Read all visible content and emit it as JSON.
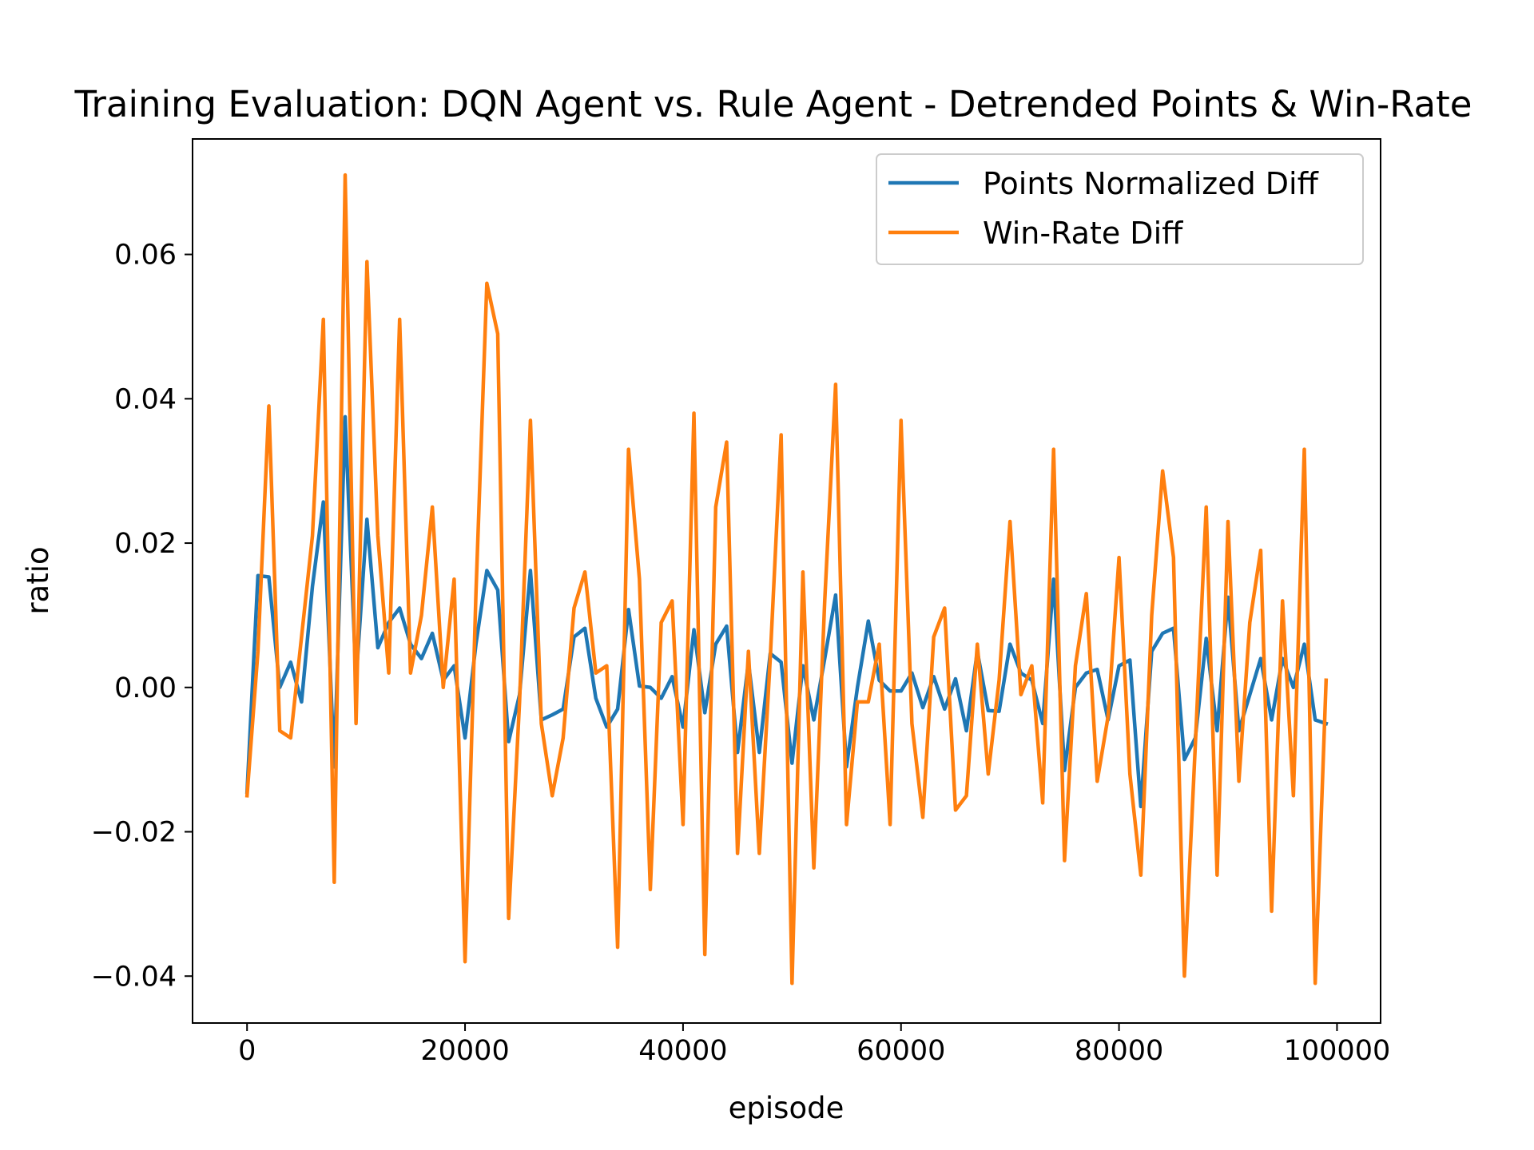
{
  "chart_data": {
    "type": "line",
    "title": "Training Evaluation: DQN Agent vs. Rule Agent - Detrended Points & Win-Rate",
    "xlabel": "episode",
    "ylabel": "ratio",
    "xlim": [
      -5000,
      104000
    ],
    "ylim": [
      -0.0465,
      0.076
    ],
    "x_ticks": [
      0,
      20000,
      40000,
      60000,
      80000,
      100000
    ],
    "x_tick_labels": [
      "0",
      "20000",
      "40000",
      "60000",
      "80000",
      "100000"
    ],
    "y_ticks": [
      -0.04,
      -0.02,
      0.0,
      0.02,
      0.04,
      0.06
    ],
    "y_tick_labels": [
      "−0.04",
      "−0.02",
      "0.00",
      "0.02",
      "0.04",
      "0.06"
    ],
    "grid": false,
    "legend": "top-right",
    "x": [
      0,
      1000,
      2000,
      3000,
      4000,
      5000,
      6000,
      7000,
      8000,
      9000,
      10000,
      11000,
      12000,
      13000,
      14000,
      15000,
      16000,
      17000,
      18000,
      19000,
      20000,
      21000,
      22000,
      23000,
      24000,
      25000,
      26000,
      27000,
      28000,
      29000,
      30000,
      31000,
      32000,
      33000,
      34000,
      35000,
      36000,
      37000,
      38000,
      39000,
      40000,
      41000,
      42000,
      43000,
      44000,
      45000,
      46000,
      47000,
      48000,
      49000,
      50000,
      51000,
      52000,
      53000,
      54000,
      55000,
      56000,
      57000,
      58000,
      59000,
      60000,
      61000,
      62000,
      63000,
      64000,
      65000,
      66000,
      67000,
      68000,
      69000,
      70000,
      71000,
      72000,
      73000,
      74000,
      75000,
      76000,
      77000,
      78000,
      79000,
      80000,
      81000,
      82000,
      83000,
      84000,
      85000,
      86000,
      87000,
      88000,
      89000,
      90000,
      91000,
      92000,
      93000,
      94000,
      95000,
      96000,
      97000,
      98000,
      99000
    ],
    "series": [
      {
        "name": "Points Normalized Diff",
        "color": "#1f77b4",
        "values": [
          -0.0145,
          0.0155,
          0.0153,
          0.0,
          0.0035,
          -0.002,
          0.014,
          0.0257,
          -0.011,
          0.0375,
          0.001,
          0.0233,
          0.0055,
          0.009,
          0.011,
          0.006,
          0.004,
          0.0075,
          0.001,
          0.003,
          -0.007,
          0.006,
          0.0162,
          0.0135,
          -0.0075,
          -0.001,
          0.0162,
          -0.0045,
          -0.0038,
          -0.003,
          0.007,
          0.0082,
          -0.0015,
          -0.0055,
          -0.003,
          0.0108,
          0.0002,
          0.0,
          -0.0015,
          0.0015,
          -0.0055,
          0.008,
          -0.0035,
          0.006,
          0.0085,
          -0.009,
          0.0035,
          -0.009,
          0.0047,
          0.0035,
          -0.0105,
          0.003,
          -0.0045,
          0.004,
          0.0128,
          -0.011,
          0.0,
          0.0092,
          0.001,
          -0.0005,
          -0.0005,
          0.002,
          -0.0028,
          0.0015,
          -0.003,
          0.0012,
          -0.006,
          0.005,
          -0.0032,
          -0.0033,
          0.006,
          0.002,
          0.001,
          -0.005,
          0.015,
          -0.0115,
          0.0,
          0.002,
          0.0025,
          -0.0045,
          0.003,
          0.0038,
          -0.0165,
          0.005,
          0.0075,
          0.0082,
          -0.01,
          -0.007,
          0.0068,
          -0.006,
          0.0125,
          -0.006,
          -0.001,
          0.004,
          -0.0045,
          0.004,
          0.0,
          0.006,
          -0.0045,
          -0.005
        ]
      },
      {
        "name": "Win-Rate Diff",
        "color": "#ff7f0e",
        "values": [
          -0.015,
          0.005,
          0.039,
          -0.006,
          -0.007,
          0.007,
          0.021,
          0.051,
          -0.027,
          0.071,
          -0.005,
          0.059,
          0.021,
          0.002,
          0.051,
          0.002,
          0.01,
          0.025,
          0.0,
          0.015,
          -0.038,
          0.013,
          0.056,
          0.049,
          -0.032,
          -0.002,
          0.037,
          -0.005,
          -0.015,
          -0.007,
          0.011,
          0.016,
          0.002,
          0.003,
          -0.036,
          0.033,
          0.015,
          -0.028,
          0.009,
          0.012,
          -0.019,
          0.038,
          -0.037,
          0.025,
          0.034,
          -0.023,
          0.005,
          -0.023,
          0.004,
          0.035,
          -0.041,
          0.016,
          -0.025,
          0.012,
          0.042,
          -0.019,
          -0.002,
          -0.002,
          0.006,
          -0.019,
          0.037,
          -0.005,
          -0.018,
          0.007,
          0.011,
          -0.017,
          -0.015,
          0.006,
          -0.012,
          0.001,
          0.023,
          -0.001,
          0.003,
          -0.016,
          0.033,
          -0.024,
          0.003,
          0.013,
          -0.013,
          -0.004,
          0.018,
          -0.012,
          -0.026,
          0.01,
          0.03,
          0.018,
          -0.04,
          -0.008,
          0.025,
          -0.026,
          0.023,
          -0.013,
          0.009,
          0.019,
          -0.031,
          0.012,
          -0.015,
          0.033,
          -0.041,
          0.001
        ]
      }
    ]
  }
}
